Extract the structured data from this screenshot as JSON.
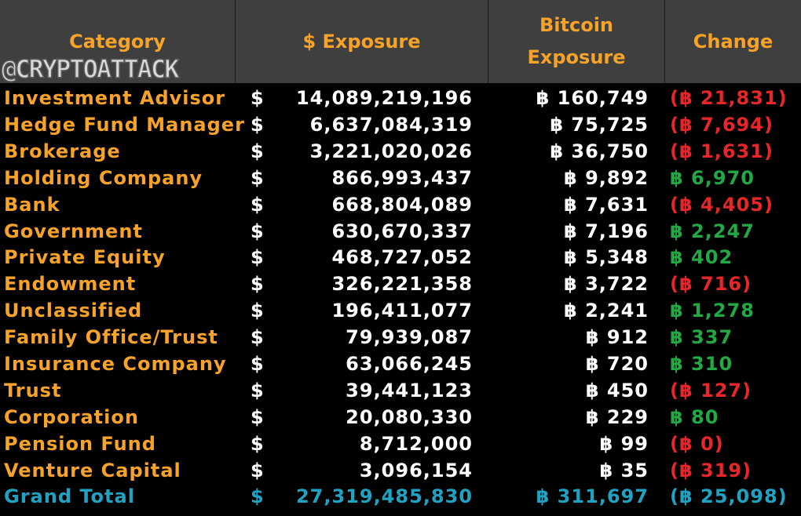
{
  "watermark": "@CRYPTOATTACK",
  "header": {
    "category": "Category",
    "usd_exposure": "$ Exposure",
    "btc_exposure_line1": "Bitcoin",
    "btc_exposure_line2": "Exposure",
    "change": "Change"
  },
  "colors": {
    "header_bg": "#3f3f3f",
    "header_text": "#f7a228",
    "category_text": "#f7a228",
    "positive": "#22a845",
    "negative": "#e8262a",
    "total": "#1fa3c3"
  },
  "rows": [
    {
      "category": "Investment Advisor",
      "usd": "$",
      "exposure": "14,089,219,196",
      "btc": "฿ 160,749",
      "change": "(฿ 21,831)",
      "sign": "neg"
    },
    {
      "category": "Hedge Fund Manager",
      "usd": "$",
      "exposure": "6,637,084,319",
      "btc": "฿ 75,725",
      "change": "(฿ 7,694)",
      "sign": "neg"
    },
    {
      "category": "Brokerage",
      "usd": "$",
      "exposure": "3,221,020,026",
      "btc": "฿ 36,750",
      "change": "(฿ 1,631)",
      "sign": "neg"
    },
    {
      "category": "Holding Company",
      "usd": "$",
      "exposure": "866,993,437",
      "btc": "฿ 9,892",
      "change": "฿ 6,970",
      "sign": "pos"
    },
    {
      "category": "Bank",
      "usd": "$",
      "exposure": "668,804,089",
      "btc": "฿ 7,631",
      "change": "(฿ 4,405)",
      "sign": "neg"
    },
    {
      "category": "Government",
      "usd": "$",
      "exposure": "630,670,337",
      "btc": "฿ 7,196",
      "change": "฿ 2,247",
      "sign": "pos"
    },
    {
      "category": "Private Equity",
      "usd": "$",
      "exposure": "468,727,052",
      "btc": "฿ 5,348",
      "change": "฿ 402",
      "sign": "pos"
    },
    {
      "category": "Endowment",
      "usd": "$",
      "exposure": "326,221,358",
      "btc": "฿ 3,722",
      "change": "(฿ 716)",
      "sign": "neg"
    },
    {
      "category": "Unclassified",
      "usd": "$",
      "exposure": "196,411,077",
      "btc": "฿ 2,241",
      "change": "฿ 1,278",
      "sign": "pos"
    },
    {
      "category": "Family Office/Trust",
      "usd": "$",
      "exposure": "79,939,087",
      "btc": "฿ 912",
      "change": "฿ 337",
      "sign": "pos"
    },
    {
      "category": "Insurance Company",
      "usd": "$",
      "exposure": "63,066,245",
      "btc": "฿ 720",
      "change": "฿ 310",
      "sign": "pos"
    },
    {
      "category": "Trust",
      "usd": "$",
      "exposure": "39,441,123",
      "btc": "฿ 450",
      "change": "(฿ 127)",
      "sign": "neg"
    },
    {
      "category": "Corporation",
      "usd": "$",
      "exposure": "20,080,330",
      "btc": "฿ 229",
      "change": "฿ 80",
      "sign": "pos"
    },
    {
      "category": "Pension Fund",
      "usd": "$",
      "exposure": "8,712,000",
      "btc": "฿ 99",
      "change": "(฿ 0)",
      "sign": "neg"
    },
    {
      "category": "Venture Capital",
      "usd": "$",
      "exposure": "3,096,154",
      "btc": "฿ 35",
      "change": "(฿ 319)",
      "sign": "neg"
    }
  ],
  "total": {
    "category": "Grand Total",
    "usd": "$",
    "exposure": "27,319,485,830",
    "btc": "฿ 311,697",
    "change": "(฿ 25,098)"
  }
}
